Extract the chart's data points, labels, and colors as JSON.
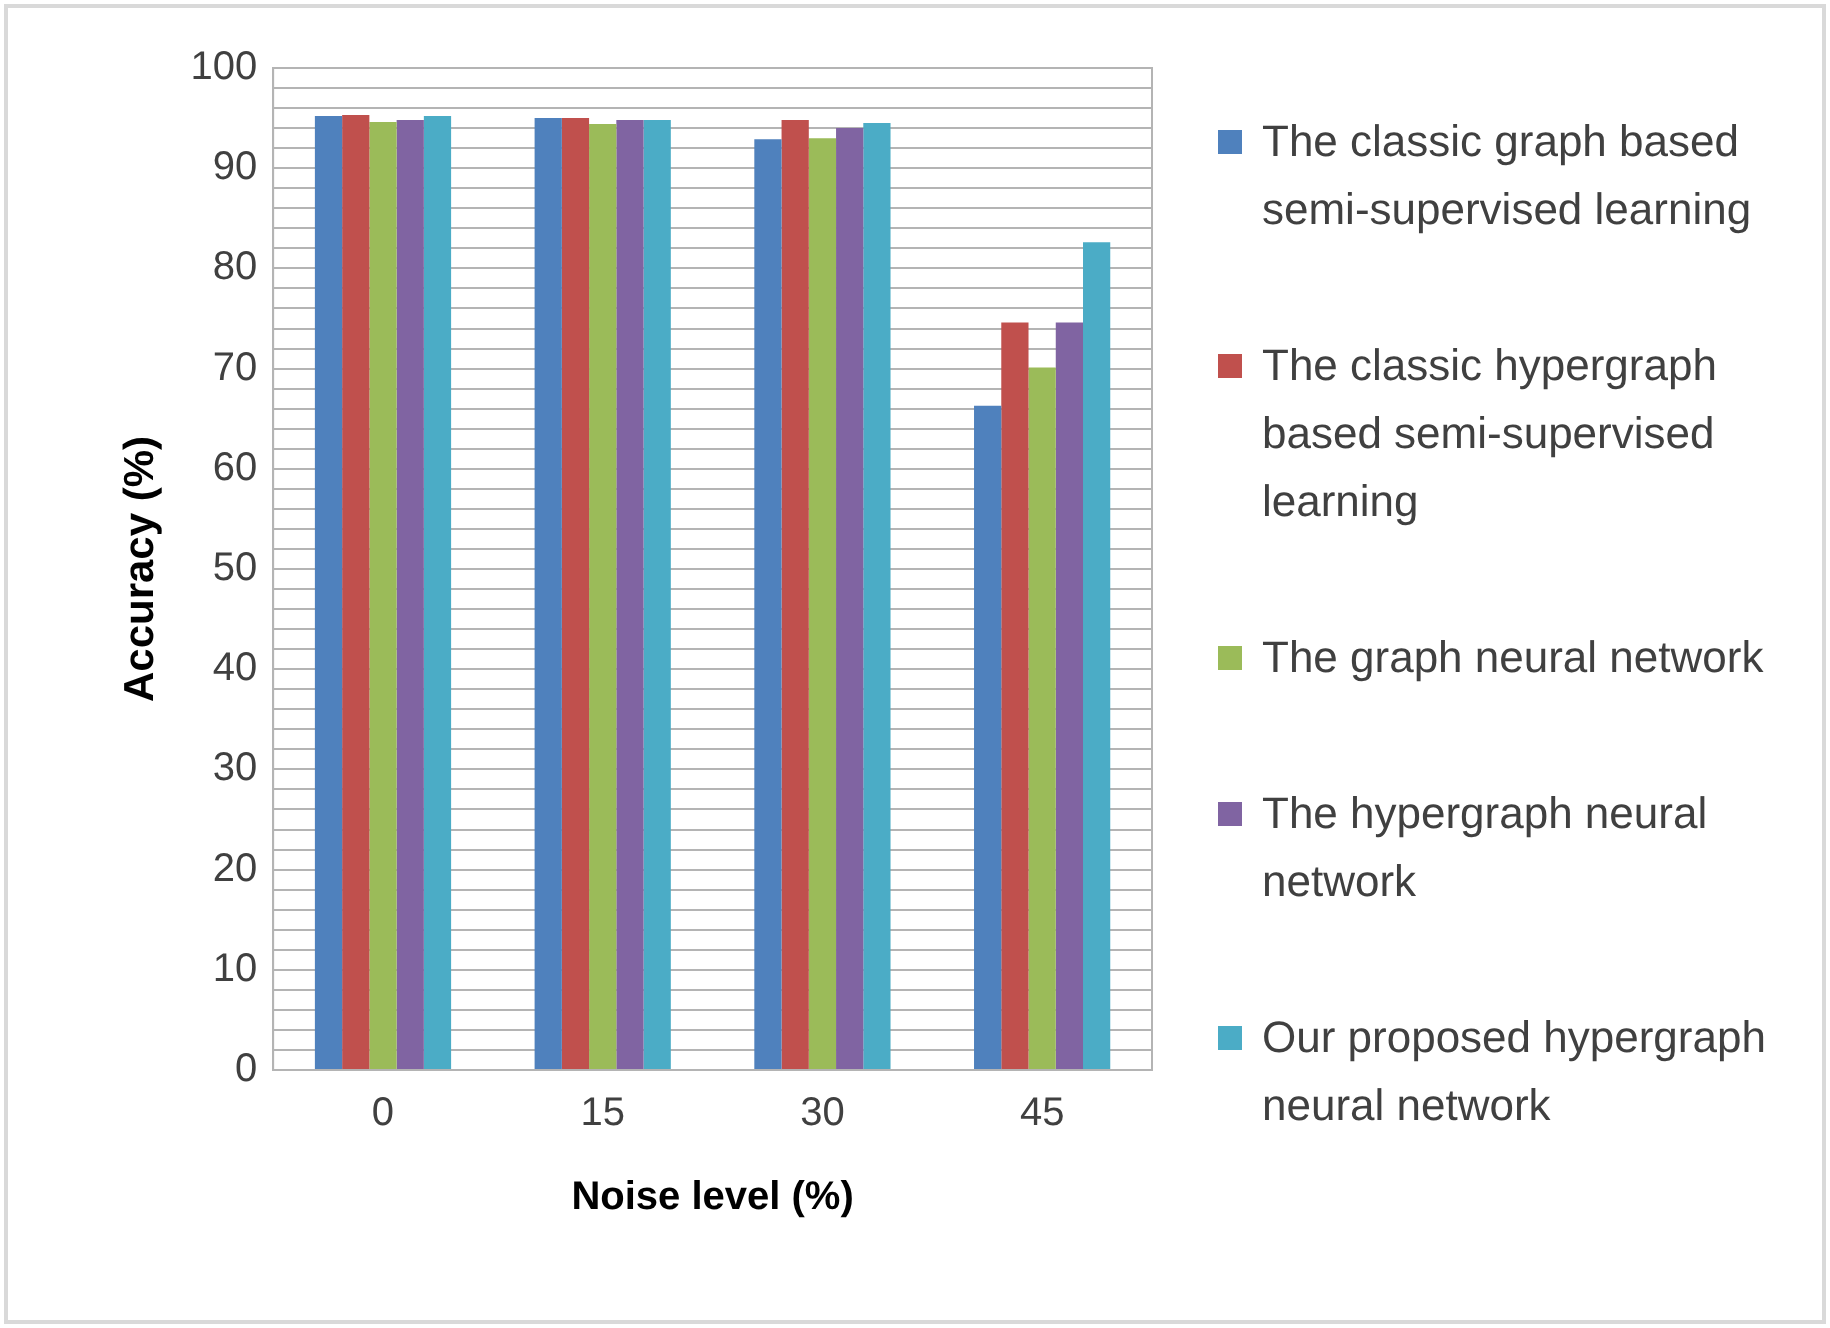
{
  "chart_data": {
    "type": "bar",
    "xlabel": "Noise level (%)",
    "ylabel": "Accuracy (%)",
    "categories": [
      "0",
      "15",
      "30",
      "45"
    ],
    "series": [
      {
        "name": "The classic graph based semi-supervised learning",
        "color": "#4f81bd",
        "values": [
          95.2,
          95.0,
          92.9,
          66.3
        ]
      },
      {
        "name": "The classic hypergraph based semi-supervised learning",
        "color": "#c0504d",
        "values": [
          95.3,
          95.0,
          94.8,
          74.6
        ]
      },
      {
        "name": "The graph neural network",
        "color": "#9bbb59",
        "values": [
          94.6,
          94.4,
          93.0,
          70.1
        ]
      },
      {
        "name": "The hypergraph neural network",
        "color": "#8064a2",
        "values": [
          94.8,
          94.8,
          94.0,
          74.6
        ]
      },
      {
        "name": "Our proposed hypergraph neural network",
        "color": "#4bacc6",
        "values": [
          95.2,
          94.8,
          94.5,
          82.6
        ]
      }
    ],
    "ylim": [
      0,
      100
    ],
    "yticks": [
      0,
      {
        "value": 2,
        "label": null
      },
      {
        "value": 4,
        "label": null
      },
      {
        "value": 6,
        "label": null
      },
      {
        "value": 8,
        "label": null
      },
      10,
      {
        "value": 12,
        "label": null
      },
      {
        "value": 14,
        "label": null
      },
      {
        "value": 16,
        "label": null
      },
      {
        "value": 18,
        "label": null
      },
      20,
      {
        "value": 22,
        "label": null
      },
      {
        "value": 24,
        "label": null
      },
      {
        "value": 26,
        "label": null
      },
      {
        "value": 28,
        "label": null
      },
      30,
      {
        "value": 32,
        "label": null
      },
      {
        "value": 34,
        "label": null
      },
      {
        "value": 36,
        "label": null
      },
      {
        "value": 38,
        "label": null
      },
      40,
      {
        "value": 42,
        "label": null
      },
      {
        "value": 44,
        "label": null
      },
      {
        "value": 46,
        "label": null
      },
      {
        "value": 48,
        "label": null
      },
      50,
      {
        "value": 52,
        "label": null
      },
      {
        "value": 54,
        "label": null
      },
      {
        "value": 56,
        "label": null
      },
      {
        "value": 58,
        "label": null
      },
      60,
      {
        "value": 62,
        "label": null
      },
      {
        "value": 64,
        "label": null
      },
      {
        "value": 66,
        "label": null
      },
      {
        "value": 68,
        "label": null
      },
      70,
      {
        "value": 72,
        "label": null
      },
      {
        "value": 74,
        "label": null
      },
      {
        "value": 76,
        "label": null
      },
      {
        "value": 78,
        "label": null
      },
      80,
      {
        "value": 82,
        "label": null
      },
      {
        "value": 84,
        "label": null
      },
      {
        "value": 86,
        "label": null
      },
      {
        "value": 88,
        "label": null
      },
      90,
      {
        "value": 92,
        "label": null
      },
      {
        "value": 94,
        "label": null
      },
      {
        "value": 96,
        "label": null
      },
      {
        "value": 98,
        "label": null
      },
      100
    ],
    "grid": "y",
    "legend": "right"
  }
}
